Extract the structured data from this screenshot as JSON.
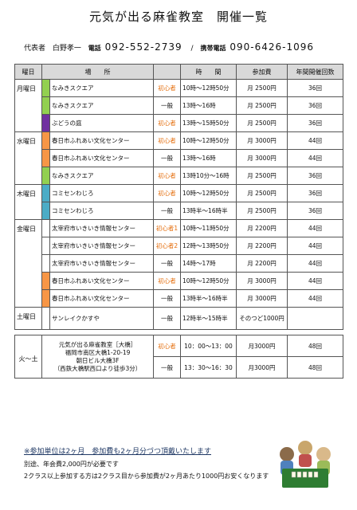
{
  "title": "元気が出る麻雀教室　開催一覧",
  "contact": {
    "rep_label": "代表者",
    "rep_name": "白野孝一",
    "tel_label": "電話",
    "tel": "092-552-2739",
    "sep": "/",
    "mobile_label": "携帯電話",
    "mobile": "090-6426-1096"
  },
  "headers": [
    "曜日",
    "場　　所",
    "",
    "時　　間",
    "参加費",
    "年間開催回数"
  ],
  "rows": [
    {
      "day": "月曜日",
      "place": "なみきスクエア",
      "type": "初心者",
      "time": "10時～12時50分",
      "fee": "月 2500円",
      "count": "36回"
    },
    {
      "day": "",
      "place": "なみきスクエア",
      "type": "一般",
      "time": "13時～16時",
      "fee": "月 2500円",
      "count": "36回"
    },
    {
      "day": "",
      "place": "ぶどうの庭",
      "type": "初心者",
      "time": "13時～15時50分",
      "fee": "月 2500円",
      "count": "36回"
    },
    {
      "day": "水曜日",
      "place": "春日市ふれあい文化センター",
      "type": "初心者",
      "time": "10時～12時50分",
      "fee": "月 3000円",
      "count": "44回"
    },
    {
      "day": "",
      "place": "春日市ふれあい文化センター",
      "type": "一般",
      "time": "13時～16時",
      "fee": "月 3000円",
      "count": "44回"
    },
    {
      "day": "",
      "place": "なみきスクエア",
      "type": "初心者",
      "time": "13時10分～16時",
      "fee": "月 2500円",
      "count": "36回"
    },
    {
      "day": "木曜日",
      "place": "コミセンわじろ",
      "type": "初心者",
      "time": "10時～12時50分",
      "fee": "月 2500円",
      "count": "36回"
    },
    {
      "day": "",
      "place": "コミセンわじろ",
      "type": "一般",
      "time": "13時半～16時半",
      "fee": "月 2500円",
      "count": "36回"
    },
    {
      "day": "金曜日",
      "place": "太宰府市いきいき情報センター",
      "type": "初心者1",
      "time": "10時～11時50分",
      "fee": "月 2200円",
      "count": "44回"
    },
    {
      "day": "",
      "place": "太宰府市いきいき情報センター",
      "type": "初心者2",
      "time": "12時～13時50分",
      "fee": "月 2200円",
      "count": "44回"
    },
    {
      "day": "",
      "place": "太宰府市いきいき情報センター",
      "type": "一般",
      "time": "14時～17時",
      "fee": "月 2200円",
      "count": "44回"
    },
    {
      "day": "",
      "place": "春日市ふれあい文化センター",
      "type": "初心者",
      "time": "10時～12時50分",
      "fee": "月 3000円",
      "count": "44回"
    },
    {
      "day": "",
      "place": "春日市ふれあい文化センター",
      "type": "一般",
      "time": "13時半～16時半",
      "fee": "月 3000円",
      "count": "44回"
    },
    {
      "day": "土曜日",
      "place": "サンレイクかすや",
      "type": "一般",
      "time": "12時半～15時半",
      "fee": "そのつど1000円",
      "count": ""
    }
  ],
  "last": {
    "day": "火～土",
    "place_lines": [
      "元気が出る麻雀教室［大橋］",
      "福岡市南区大橋1-20-19",
      "朝日ビル大橋3F",
      "（西鉄大橋駅西口より徒歩3分）"
    ],
    "r1": {
      "type": "初心者",
      "time": "10：00～13：00",
      "fee": "月3000円",
      "count": "48回"
    },
    "r2": {
      "type": "一般",
      "time": "13：30～16：30",
      "fee": "月3000円",
      "count": "48回"
    }
  },
  "notes": [
    "※参加単位は2ヶ月　参加費も2ヶ月分づつ頂戴いたします",
    "別途、年会費2,000円が必要です",
    "2クラス以上参加する方は2クラス目から参加費が2ヶ月あたり1000円お安くなります"
  ],
  "row_colors": [
    "#92d050",
    "#92d050",
    "#7030a0",
    "#f79646",
    "#f79646",
    "#92d050",
    "#4bacc6",
    "#4bacc6",
    "#ffffff",
    "#ffffff",
    "#ffffff",
    "#f79646",
    "#f79646",
    "#ffffff"
  ]
}
